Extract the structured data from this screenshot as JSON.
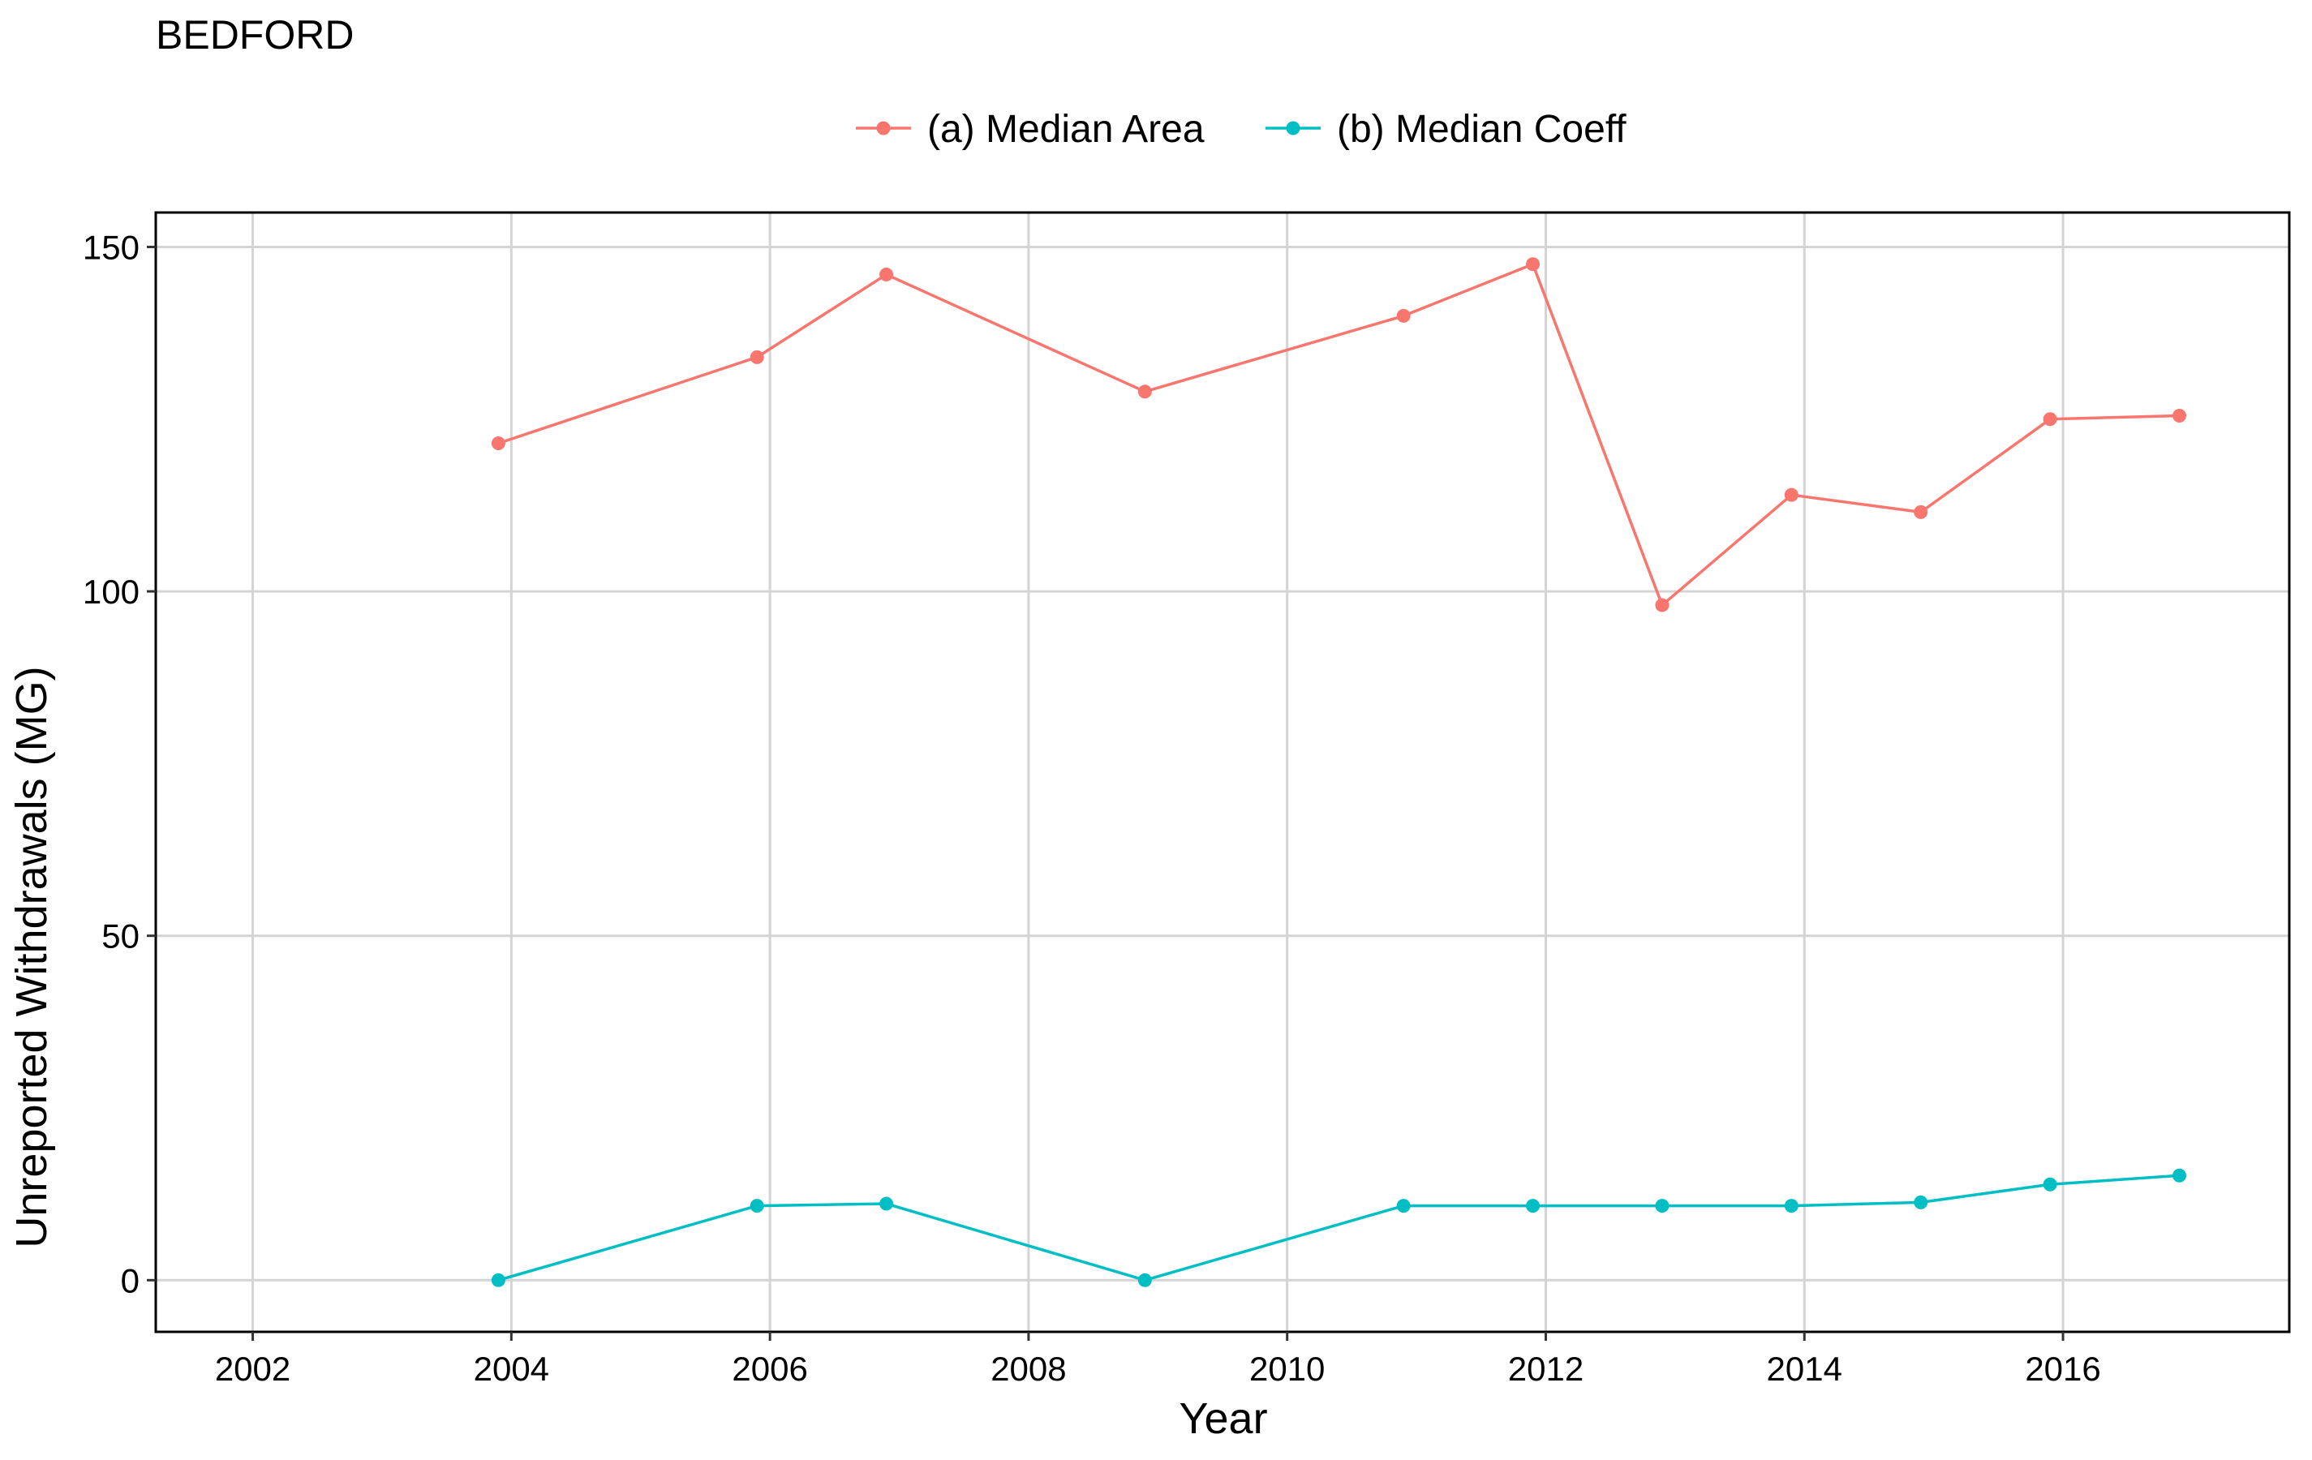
{
  "chart_data": {
    "type": "line",
    "title": "BEDFORD",
    "xlabel": "Year",
    "ylabel": "Unreported Withdrawals (MG)",
    "xlim": [
      2001.25,
      2017.75
    ],
    "ylim": [
      -7.5,
      155
    ],
    "x_ticks": [
      2002,
      2004,
      2006,
      2008,
      2010,
      2012,
      2014,
      2016
    ],
    "y_ticks": [
      0,
      50,
      100,
      150
    ],
    "grid": true,
    "legend_position": "top",
    "series": [
      {
        "name": "(a) Median Area",
        "color": "#F8766D",
        "x": [
          2003.9,
          2005.9,
          2006.9,
          2008.9,
          2010.9,
          2011.9,
          2012.9,
          2013.9,
          2014.9,
          2015.9,
          2016.9
        ],
        "y": [
          121.5,
          134,
          146,
          129,
          140,
          147.5,
          98,
          114,
          111.5,
          125,
          125.5
        ]
      },
      {
        "name": "(b) Median Coeff",
        "color": "#00BFC4",
        "x": [
          2003.9,
          2005.9,
          2006.9,
          2008.9,
          2010.9,
          2011.9,
          2012.9,
          2013.9,
          2014.9,
          2015.9,
          2016.9
        ],
        "y": [
          0,
          10.8,
          11.1,
          0,
          10.8,
          10.8,
          10.8,
          10.8,
          11.3,
          13.9,
          15.2
        ]
      }
    ]
  }
}
